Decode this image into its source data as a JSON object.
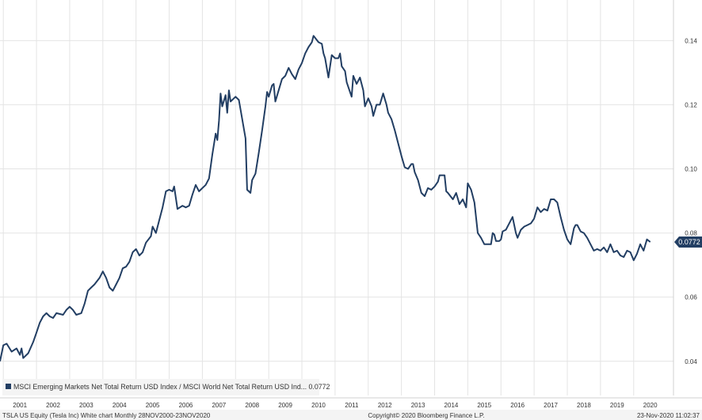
{
  "chart_data": {
    "type": "line",
    "legend_text": "MSCI Emerging Markets Net Total Return USD Index / MSCI World Net Total Return USD Ind... 0.0772",
    "last_value_label": "0.0772",
    "footer": {
      "left": "TSLA US Equity (Tesla Inc) White chart  Monthly 28NOV2000-23NOV2020",
      "center": "Copyright© 2020 Bloomberg Finance L.P.",
      "right": "23-Nov-2020 11:02:37"
    },
    "x_ticks": [
      2001,
      2002,
      2003,
      2004,
      2005,
      2006,
      2007,
      2008,
      2009,
      2010,
      2011,
      2012,
      2013,
      2014,
      2015,
      2016,
      2017,
      2018,
      2019,
      2020
    ],
    "y_ticks": [
      "0.14",
      "0.12",
      "0.10",
      "0.08",
      "0.06",
      "0.04"
    ],
    "xlim": [
      2000.9,
      2021.2
    ],
    "ylim": [
      0.0355,
      0.1465
    ],
    "grid": true,
    "colors": {
      "line": "#223e63",
      "grid": "#e4e4e4",
      "badge": "#223e63",
      "text": "#333333"
    },
    "series": [
      {
        "values": [
          [
            2000.9,
            0.04
          ],
          [
            2001.0,
            0.045
          ],
          [
            2001.1,
            0.0455
          ],
          [
            2001.25,
            0.043
          ],
          [
            2001.4,
            0.044
          ],
          [
            2001.5,
            0.042
          ],
          [
            2001.55,
            0.044
          ],
          [
            2001.6,
            0.041
          ],
          [
            2001.75,
            0.0425
          ],
          [
            2001.9,
            0.046
          ],
          [
            2002.0,
            0.049
          ],
          [
            2002.1,
            0.052
          ],
          [
            2002.2,
            0.054
          ],
          [
            2002.3,
            0.055
          ],
          [
            2002.4,
            0.054
          ],
          [
            2002.5,
            0.0535
          ],
          [
            2002.6,
            0.055
          ],
          [
            2002.8,
            0.0545
          ],
          [
            2002.9,
            0.056
          ],
          [
            2003.0,
            0.057
          ],
          [
            2003.1,
            0.056
          ],
          [
            2003.2,
            0.0545
          ],
          [
            2003.35,
            0.055
          ],
          [
            2003.45,
            0.058
          ],
          [
            2003.55,
            0.062
          ],
          [
            2003.65,
            0.063
          ],
          [
            2003.75,
            0.064
          ],
          [
            2003.9,
            0.066
          ],
          [
            2004.0,
            0.068
          ],
          [
            2004.1,
            0.066
          ],
          [
            2004.2,
            0.063
          ],
          [
            2004.3,
            0.062
          ],
          [
            2004.4,
            0.064
          ],
          [
            2004.5,
            0.066
          ],
          [
            2004.6,
            0.069
          ],
          [
            2004.7,
            0.0695
          ],
          [
            2004.8,
            0.071
          ],
          [
            2004.9,
            0.074
          ],
          [
            2005.0,
            0.075
          ],
          [
            2005.1,
            0.073
          ],
          [
            2005.2,
            0.074
          ],
          [
            2005.3,
            0.077
          ],
          [
            2005.45,
            0.079
          ],
          [
            2005.5,
            0.082
          ],
          [
            2005.6,
            0.08
          ],
          [
            2005.7,
            0.084
          ],
          [
            2005.8,
            0.088
          ],
          [
            2005.9,
            0.093
          ],
          [
            2006.0,
            0.0935
          ],
          [
            2006.1,
            0.093
          ],
          [
            2006.15,
            0.0945
          ],
          [
            2006.25,
            0.0875
          ],
          [
            2006.4,
            0.0885
          ],
          [
            2006.5,
            0.088
          ],
          [
            2006.6,
            0.0885
          ],
          [
            2006.7,
            0.092
          ],
          [
            2006.8,
            0.095
          ],
          [
            2006.9,
            0.093
          ],
          [
            2007.0,
            0.094
          ],
          [
            2007.1,
            0.095
          ],
          [
            2007.2,
            0.097
          ],
          [
            2007.3,
            0.1045
          ],
          [
            2007.4,
            0.111
          ],
          [
            2007.45,
            0.109
          ],
          [
            2007.5,
            0.115
          ],
          [
            2007.55,
            0.1235
          ],
          [
            2007.6,
            0.1195
          ],
          [
            2007.7,
            0.123
          ],
          [
            2007.75,
            0.1175
          ],
          [
            2007.8,
            0.1245
          ],
          [
            2007.85,
            0.121
          ],
          [
            2008.0,
            0.1225
          ],
          [
            2008.1,
            0.1215
          ],
          [
            2008.15,
            0.1185
          ],
          [
            2008.3,
            0.1095
          ],
          [
            2008.35,
            0.0935
          ],
          [
            2008.45,
            0.0925
          ],
          [
            2008.5,
            0.0965
          ],
          [
            2008.6,
            0.0985
          ],
          [
            2008.7,
            0.105
          ],
          [
            2008.8,
            0.112
          ],
          [
            2008.9,
            0.1195
          ],
          [
            2008.95,
            0.124
          ],
          [
            2009.0,
            0.1225
          ],
          [
            2009.1,
            0.126
          ],
          [
            2009.15,
            0.1265
          ],
          [
            2009.2,
            0.121
          ],
          [
            2009.3,
            0.1245
          ],
          [
            2009.4,
            0.128
          ],
          [
            2009.5,
            0.129
          ],
          [
            2009.6,
            0.1315
          ],
          [
            2009.7,
            0.1295
          ],
          [
            2009.8,
            0.128
          ],
          [
            2009.9,
            0.131
          ],
          [
            2010.0,
            0.133
          ],
          [
            2010.1,
            0.136
          ],
          [
            2010.2,
            0.138
          ],
          [
            2010.3,
            0.1395
          ],
          [
            2010.35,
            0.1415
          ],
          [
            2010.5,
            0.1395
          ],
          [
            2010.6,
            0.139
          ],
          [
            2010.65,
            0.136
          ],
          [
            2010.7,
            0.1345
          ],
          [
            2010.8,
            0.1285
          ],
          [
            2010.9,
            0.1355
          ],
          [
            2011.0,
            0.1345
          ],
          [
            2011.1,
            0.1345
          ],
          [
            2011.15,
            0.136
          ],
          [
            2011.2,
            0.132
          ],
          [
            2011.3,
            0.1305
          ],
          [
            2011.35,
            0.127
          ],
          [
            2011.45,
            0.124
          ],
          [
            2011.5,
            0.1225
          ],
          [
            2011.55,
            0.129
          ],
          [
            2011.65,
            0.1265
          ],
          [
            2011.75,
            0.1285
          ],
          [
            2011.85,
            0.1245
          ],
          [
            2011.9,
            0.1195
          ],
          [
            2012.0,
            0.122
          ],
          [
            2012.1,
            0.1195
          ],
          [
            2012.15,
            0.1165
          ],
          [
            2012.25,
            0.12
          ],
          [
            2012.35,
            0.12
          ],
          [
            2012.45,
            0.1235
          ],
          [
            2012.55,
            0.12
          ],
          [
            2012.6,
            0.1175
          ],
          [
            2012.7,
            0.1155
          ],
          [
            2012.8,
            0.112
          ],
          [
            2012.9,
            0.108
          ],
          [
            2013.0,
            0.104
          ],
          [
            2013.1,
            0.1005
          ],
          [
            2013.2,
            0.1
          ],
          [
            2013.3,
            0.1015
          ],
          [
            2013.35,
            0.1015
          ],
          [
            2013.4,
            0.099
          ],
          [
            2013.5,
            0.0965
          ],
          [
            2013.6,
            0.0925
          ],
          [
            2013.7,
            0.0915
          ],
          [
            2013.8,
            0.094
          ],
          [
            2013.9,
            0.0935
          ],
          [
            2014.0,
            0.0945
          ],
          [
            2014.1,
            0.096
          ],
          [
            2014.15,
            0.098
          ],
          [
            2014.3,
            0.098
          ],
          [
            2014.35,
            0.093
          ],
          [
            2014.4,
            0.0925
          ],
          [
            2014.55,
            0.0905
          ],
          [
            2014.65,
            0.0925
          ],
          [
            2014.75,
            0.089
          ],
          [
            2014.85,
            0.0905
          ],
          [
            2014.95,
            0.088
          ],
          [
            2015.0,
            0.0955
          ],
          [
            2015.1,
            0.0935
          ],
          [
            2015.2,
            0.0895
          ],
          [
            2015.3,
            0.08
          ],
          [
            2015.4,
            0.0785
          ],
          [
            2015.5,
            0.0765
          ],
          [
            2015.6,
            0.0765
          ],
          [
            2015.7,
            0.0765
          ],
          [
            2015.75,
            0.08
          ],
          [
            2015.8,
            0.0795
          ],
          [
            2015.85,
            0.0775
          ],
          [
            2015.95,
            0.0775
          ],
          [
            2016.0,
            0.078
          ],
          [
            2016.05,
            0.0805
          ],
          [
            2016.15,
            0.081
          ],
          [
            2016.25,
            0.083
          ],
          [
            2016.35,
            0.085
          ],
          [
            2016.45,
            0.08
          ],
          [
            2016.5,
            0.0785
          ],
          [
            2016.6,
            0.081
          ],
          [
            2016.7,
            0.082
          ],
          [
            2016.8,
            0.0825
          ],
          [
            2016.9,
            0.083
          ],
          [
            2017.0,
            0.0845
          ],
          [
            2017.1,
            0.088
          ],
          [
            2017.2,
            0.0865
          ],
          [
            2017.3,
            0.0875
          ],
          [
            2017.4,
            0.087
          ],
          [
            2017.5,
            0.0905
          ],
          [
            2017.6,
            0.0905
          ],
          [
            2017.7,
            0.0895
          ],
          [
            2017.8,
            0.085
          ],
          [
            2017.9,
            0.081
          ],
          [
            2018.0,
            0.078
          ],
          [
            2018.1,
            0.0765
          ],
          [
            2018.2,
            0.0815
          ],
          [
            2018.25,
            0.0825
          ],
          [
            2018.3,
            0.0825
          ],
          [
            2018.4,
            0.0805
          ],
          [
            2018.5,
            0.08
          ],
          [
            2018.6,
            0.0785
          ],
          [
            2018.7,
            0.0765
          ],
          [
            2018.8,
            0.0745
          ],
          [
            2018.9,
            0.075
          ],
          [
            2019.0,
            0.0745
          ],
          [
            2019.1,
            0.0755
          ],
          [
            2019.2,
            0.074
          ],
          [
            2019.3,
            0.0765
          ],
          [
            2019.4,
            0.074
          ],
          [
            2019.5,
            0.0745
          ],
          [
            2019.6,
            0.073
          ],
          [
            2019.7,
            0.0725
          ],
          [
            2019.8,
            0.0745
          ],
          [
            2019.9,
            0.074
          ],
          [
            2020.0,
            0.0715
          ],
          [
            2020.1,
            0.0735
          ],
          [
            2020.2,
            0.0765
          ],
          [
            2020.3,
            0.0745
          ],
          [
            2020.4,
            0.078
          ],
          [
            2020.5,
            0.0772
          ]
        ]
      }
    ]
  }
}
